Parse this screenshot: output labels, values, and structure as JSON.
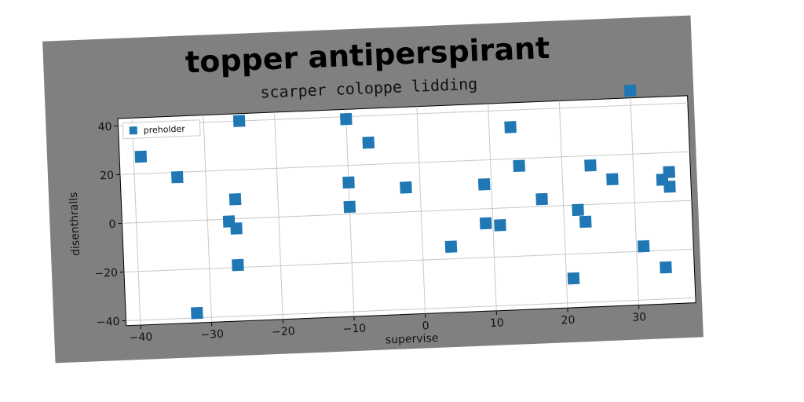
{
  "chart_data": {
    "type": "scatter",
    "title": "topper antiperspirant",
    "subtitle": "scarper coloppe lidding",
    "xlabel": "supervise",
    "ylabel": "disenthralls",
    "xlim": [
      -42,
      38
    ],
    "ylim": [
      -42,
      43
    ],
    "xticks": [
      -40,
      -30,
      -20,
      -10,
      0,
      10,
      20,
      30
    ],
    "yticks": [
      -40,
      -20,
      0,
      20,
      40
    ],
    "grid": true,
    "legend_position": "top-left",
    "colors": {
      "series": "#1f77b4",
      "background": "#808080",
      "plot": "#ffffff",
      "grid": "#c8c8c8"
    },
    "series": [
      {
        "name": "preholder",
        "marker": "square",
        "points": [
          {
            "x": -39,
            "y": 27
          },
          {
            "x": -34,
            "y": 18
          },
          {
            "x": -32,
            "y": -38
          },
          {
            "x": -25,
            "y": 40
          },
          {
            "x": -26,
            "y": 8
          },
          {
            "x": -27,
            "y": -1
          },
          {
            "x": -26,
            "y": -4
          },
          {
            "x": -26,
            "y": -19
          },
          {
            "x": -10,
            "y": 39
          },
          {
            "x": -7,
            "y": 29
          },
          {
            "x": -10,
            "y": 13
          },
          {
            "x": -10,
            "y": 3
          },
          {
            "x": -2,
            "y": 10
          },
          {
            "x": 4,
            "y": -15
          },
          {
            "x": 9,
            "y": 10
          },
          {
            "x": 9,
            "y": -6
          },
          {
            "x": 11,
            "y": -7
          },
          {
            "x": 13,
            "y": 33
          },
          {
            "x": 14,
            "y": 17
          },
          {
            "x": 17,
            "y": 3
          },
          {
            "x": 22,
            "y": -2
          },
          {
            "x": 23,
            "y": -7
          },
          {
            "x": 21,
            "y": -30
          },
          {
            "x": 24,
            "y": 16
          },
          {
            "x": 27,
            "y": 10
          },
          {
            "x": 30,
            "y": 46
          },
          {
            "x": 31,
            "y": -18
          },
          {
            "x": 34,
            "y": 9
          },
          {
            "x": 35,
            "y": 12
          },
          {
            "x": 35,
            "y": 6
          },
          {
            "x": 34,
            "y": -27
          }
        ]
      }
    ]
  }
}
